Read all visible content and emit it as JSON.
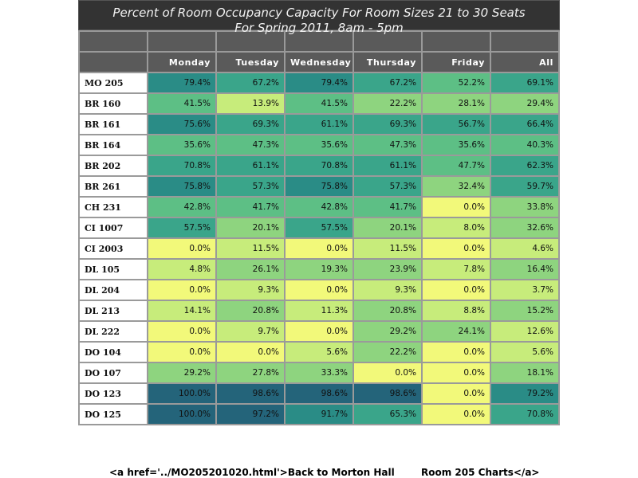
{
  "chart_data": {
    "type": "heatmap",
    "title": "Percent of Room Occupancy Capacity For Room Sizes 21 to 30 Seats",
    "subtitle": "For Spring 2011, 8am - 5pm",
    "columns": [
      "Monday",
      "Tuesday",
      "Wednesday",
      "Thursday",
      "Friday",
      "All"
    ],
    "rows": [
      {
        "room": "MO 205",
        "values": [
          "79.4%",
          "67.2%",
          "79.4%",
          "67.2%",
          "52.2%",
          "69.1%"
        ]
      },
      {
        "room": "BR 160",
        "values": [
          "41.5%",
          "13.9%",
          "41.5%",
          "22.2%",
          "28.1%",
          "29.4%"
        ]
      },
      {
        "room": "BR 161",
        "values": [
          "75.6%",
          "69.3%",
          "61.1%",
          "69.3%",
          "56.7%",
          "66.4%"
        ]
      },
      {
        "room": "BR 164",
        "values": [
          "35.6%",
          "47.3%",
          "35.6%",
          "47.3%",
          "35.6%",
          "40.3%"
        ]
      },
      {
        "room": "BR 202",
        "values": [
          "70.8%",
          "61.1%",
          "70.8%",
          "61.1%",
          "47.7%",
          "62.3%"
        ]
      },
      {
        "room": "BR 261",
        "values": [
          "75.8%",
          "57.3%",
          "75.8%",
          "57.3%",
          "32.4%",
          "59.7%"
        ]
      },
      {
        "room": "CH 231",
        "values": [
          "42.8%",
          "41.7%",
          "42.8%",
          "41.7%",
          "0.0%",
          "33.8%"
        ]
      },
      {
        "room": "CI 1007",
        "values": [
          "57.5%",
          "20.1%",
          "57.5%",
          "20.1%",
          "8.0%",
          "32.6%"
        ]
      },
      {
        "room": "CI 2003",
        "values": [
          "0.0%",
          "11.5%",
          "0.0%",
          "11.5%",
          "0.0%",
          "4.6%"
        ]
      },
      {
        "room": "DL 105",
        "values": [
          "4.8%",
          "26.1%",
          "19.3%",
          "23.9%",
          "7.8%",
          "16.4%"
        ]
      },
      {
        "room": "DL 204",
        "values": [
          "0.0%",
          "9.3%",
          "0.0%",
          "9.3%",
          "0.0%",
          "3.7%"
        ]
      },
      {
        "room": "DL 213",
        "values": [
          "14.1%",
          "20.8%",
          "11.3%",
          "20.8%",
          "8.8%",
          "15.2%"
        ]
      },
      {
        "room": "DL 222",
        "values": [
          "0.0%",
          "9.7%",
          "0.0%",
          "29.2%",
          "24.1%",
          "12.6%"
        ]
      },
      {
        "room": "DO 104",
        "values": [
          "0.0%",
          "0.0%",
          "5.6%",
          "22.2%",
          "0.0%",
          "5.6%"
        ]
      },
      {
        "room": "DO 107",
        "values": [
          "29.2%",
          "27.8%",
          "33.3%",
          "0.0%",
          "0.0%",
          "18.1%"
        ]
      },
      {
        "room": "DO 123",
        "values": [
          "100.0%",
          "98.6%",
          "98.6%",
          "98.6%",
          "0.0%",
          "79.2%"
        ]
      },
      {
        "room": "DO 125",
        "values": [
          "100.0%",
          "97.2%",
          "91.7%",
          "65.3%",
          "0.0%",
          "70.8%"
        ]
      }
    ],
    "color_scale": [
      "#f2f97a",
      "#c7ec7b",
      "#8ed47f",
      "#5dbf85",
      "#3aa58a",
      "#2a8c86",
      "#24647a"
    ]
  },
  "footer": {
    "left": "<a href='../MO205201020.html'>Back to Morton Hall",
    "right": "Room 205 Charts</a>"
  }
}
